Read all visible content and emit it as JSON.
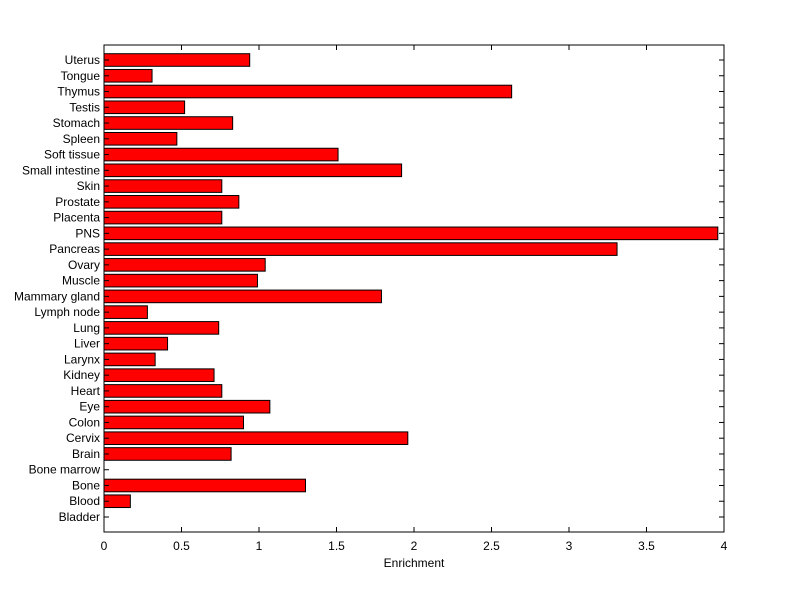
{
  "chart_data": {
    "type": "bar",
    "orientation": "horizontal",
    "title": "",
    "xlabel": "Enrichment",
    "ylabel": "",
    "xlim": [
      0,
      4
    ],
    "xticks": [
      0,
      0.5,
      1,
      1.5,
      2,
      2.5,
      3,
      3.5,
      4
    ],
    "grid": false,
    "bar_color": "#ff0000",
    "categories": [
      "Bladder",
      "Blood",
      "Bone",
      "Bone marrow",
      "Brain",
      "Cervix",
      "Colon",
      "Eye",
      "Heart",
      "Kidney",
      "Larynx",
      "Liver",
      "Lung",
      "Lymph node",
      "Mammary gland",
      "Muscle",
      "Ovary",
      "Pancreas",
      "PNS",
      "Placenta",
      "Prostate",
      "Skin",
      "Small intestine",
      "Soft tissue",
      "Spleen",
      "Stomach",
      "Testis",
      "Thymus",
      "Tongue",
      "Uterus"
    ],
    "values": [
      0,
      0.17,
      1.3,
      0,
      0.82,
      1.96,
      0.9,
      1.07,
      0.76,
      0.71,
      0.33,
      0.41,
      0.74,
      0.28,
      1.79,
      0.99,
      1.04,
      3.31,
      3.96,
      0.76,
      0.87,
      0.76,
      1.92,
      1.51,
      0.47,
      0.83,
      0.52,
      2.63,
      0.31,
      0.94
    ]
  }
}
